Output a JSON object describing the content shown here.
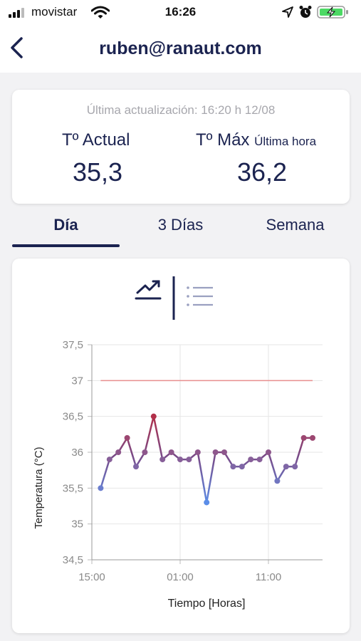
{
  "status_bar": {
    "carrier": "movistar",
    "time": "16:26"
  },
  "nav": {
    "title": "ruben@ranaut.com"
  },
  "summary": {
    "updated": "Última actualización: 16:20 h 12/08",
    "current_label": "Tº Actual",
    "current_value": "35,3",
    "max_label": "Tº Máx",
    "max_sub": "Última hora",
    "max_value": "36,2"
  },
  "tabs": [
    {
      "label": "Día",
      "active": true
    },
    {
      "label": "3 Días",
      "active": false
    },
    {
      "label": "Semana",
      "active": false
    }
  ],
  "colors": {
    "primary": "#1b2350",
    "threshold": "#e88f8f",
    "high": "#b2304a",
    "low": "#5b8de8"
  },
  "chart_data": {
    "type": "line",
    "xlabel": "Tiempo [Horas]",
    "ylabel": "Temperatura (°C)",
    "ylim": [
      34.5,
      37.5
    ],
    "yticks": [
      "37,5",
      "37",
      "36,5",
      "36",
      "35,5",
      "35",
      "34,5"
    ],
    "ytick_values": [
      37.5,
      37,
      36.5,
      36,
      35.5,
      35,
      34.5
    ],
    "xticks": [
      "15:00",
      "01:00",
      "11:00"
    ],
    "xtick_values": [
      0,
      10,
      20
    ],
    "threshold": 37,
    "x": [
      1,
      2,
      3,
      4,
      5,
      6,
      7,
      8,
      9,
      10,
      11,
      12,
      13,
      14,
      15,
      16,
      17,
      18,
      19,
      20,
      21,
      22,
      23,
      24,
      25
    ],
    "y": [
      35.5,
      35.9,
      36.0,
      36.2,
      35.8,
      36.0,
      36.5,
      35.9,
      36.0,
      35.9,
      35.9,
      36.0,
      35.3,
      36.0,
      36.0,
      35.8,
      35.8,
      35.9,
      35.9,
      36.0,
      35.6,
      35.8,
      35.8,
      36.2,
      36.2
    ],
    "grid": true
  }
}
